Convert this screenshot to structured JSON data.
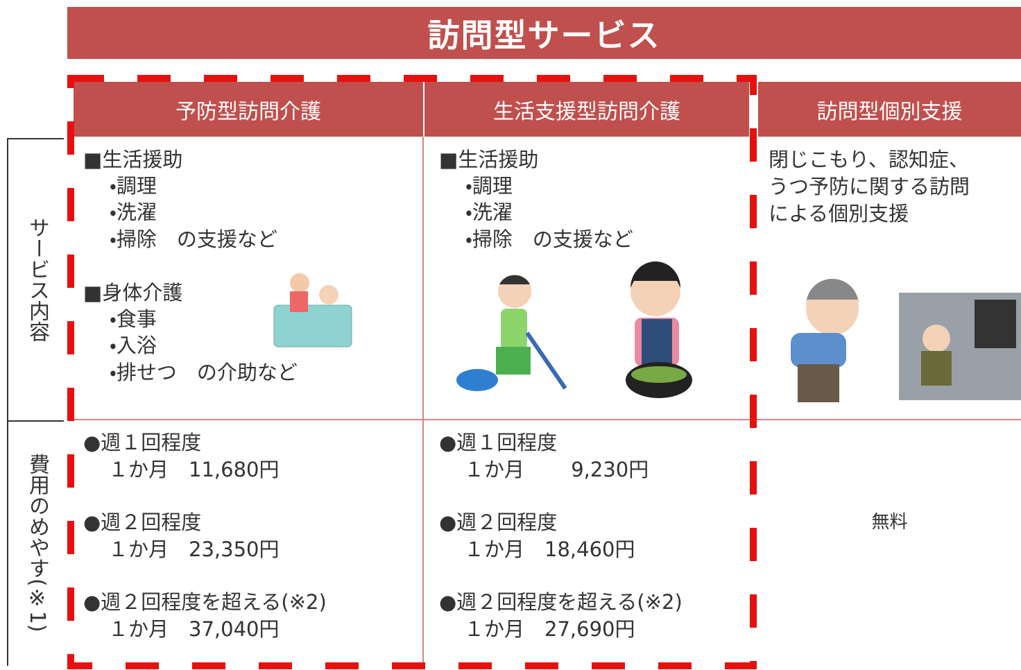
{
  "header": {
    "title": "訪問型サービス"
  },
  "columns": [
    "予防型訪問介護",
    "生活支援型訪問介護",
    "訪問型個別支援"
  ],
  "row_labels": [
    "サービス内容",
    "費用のめやす(※1)"
  ],
  "content": [
    [
      "■生活援助",
      "・調理",
      "・洗濯",
      "・掃除　の支援など",
      "■身体介護",
      "・食事",
      "・入浴",
      "・排せつ　の介助など"
    ],
    [
      "■生活援助",
      "・調理",
      "・洗濯",
      "・掃除　の支援など"
    ],
    [
      "閉じこもり、認知症、",
      "うつ予防に関する訪問",
      "による個別支援"
    ]
  ],
  "cost": [
    [
      "●週１回程度",
      "１か月　11,680円",
      "●週２回程度",
      "１か月　23,350円",
      "●週２回程度を超える(※2)",
      "１か月　37,040円"
    ],
    [
      "●週１回程度",
      "１か月　　 9,230円",
      "●週２回程度",
      "１か月　18,460円",
      "●週２回程度を超える(※2)",
      "１か月　27,690円"
    ],
    [
      "無料"
    ]
  ]
}
